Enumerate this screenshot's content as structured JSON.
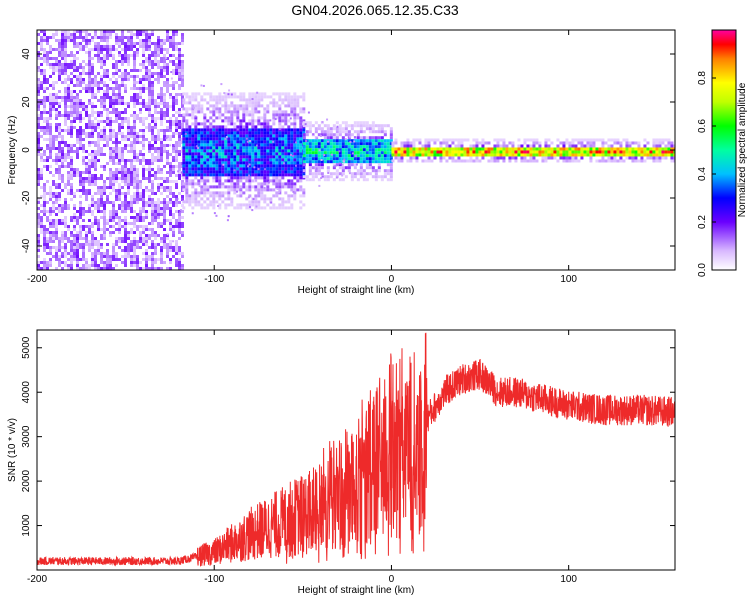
{
  "title": "GN04.2026.065.12.35.C33",
  "chart_data": [
    {
      "type": "heatmap",
      "name": "spectrogram",
      "xlabel": "Height of straight line (km)",
      "ylabel": "Frequency (Hz)",
      "xlim": [
        -200,
        160
      ],
      "ylim": [
        -50,
        50
      ],
      "xticks": [
        -200,
        -100,
        0,
        100
      ],
      "xtick_labels": [
        "-200",
        "-100",
        "0",
        "100"
      ],
      "yticks": [
        -40,
        -20,
        0,
        20,
        40
      ],
      "ytick_labels": [
        "-40",
        "-20",
        "0",
        "20",
        "40"
      ],
      "colorbar": {
        "label": "Normalized spectral amplitude",
        "range": [
          0,
          1
        ],
        "ticks": [
          0.0,
          0.2,
          0.4,
          0.6,
          0.8
        ],
        "tick_labels": [
          "0.0",
          "0.2",
          "0.4",
          "0.6",
          "0.8"
        ]
      },
      "features": [
        {
          "x_range": [
            -200,
            -118
          ],
          "freq_range": [
            -50,
            50
          ],
          "amplitude": [
            0.05,
            0.2
          ],
          "note": "broadband noise"
        },
        {
          "x_range": [
            -118,
            -50
          ],
          "freq_range": [
            -10,
            10
          ],
          "amplitude": [
            0.2,
            0.5
          ],
          "note": "strong band"
        },
        {
          "x_range": [
            -50,
            0
          ],
          "freq_range": [
            -5,
            5
          ],
          "amplitude": [
            0.3,
            0.6
          ]
        },
        {
          "x_range": [
            0,
            160
          ],
          "freq_range": [
            -2,
            2
          ],
          "amplitude": [
            0.6,
            1.0
          ],
          "note": "narrow carrier"
        }
      ]
    },
    {
      "type": "line",
      "name": "snr",
      "xlabel": "Height of straight line (km)",
      "ylabel": "SNR (10 * v/v)",
      "xlim": [
        -200,
        160
      ],
      "ylim": [
        0,
        5400
      ],
      "xticks": [
        -200,
        -100,
        0,
        100
      ],
      "xtick_labels": [
        "-200",
        "-100",
        "0",
        "100"
      ],
      "yticks": [
        1000,
        2000,
        3000,
        4000,
        5000
      ],
      "ytick_labels": [
        "1000",
        "2000",
        "3000",
        "4000",
        "5000"
      ],
      "color": "#ee2a2a",
      "trend": {
        "x": [
          -200,
          -120,
          -100,
          -80,
          -60,
          -40,
          -20,
          -10,
          0,
          10,
          20,
          30,
          40,
          50,
          60,
          70,
          80,
          90,
          100,
          120,
          140,
          160
        ],
        "y": [
          200,
          200,
          400,
          800,
          1100,
          1400,
          2000,
          2400,
          2800,
          2600,
          3400,
          4000,
          4300,
          4400,
          4000,
          4000,
          3900,
          3800,
          3700,
          3600,
          3600,
          3550
        ]
      }
    }
  ]
}
